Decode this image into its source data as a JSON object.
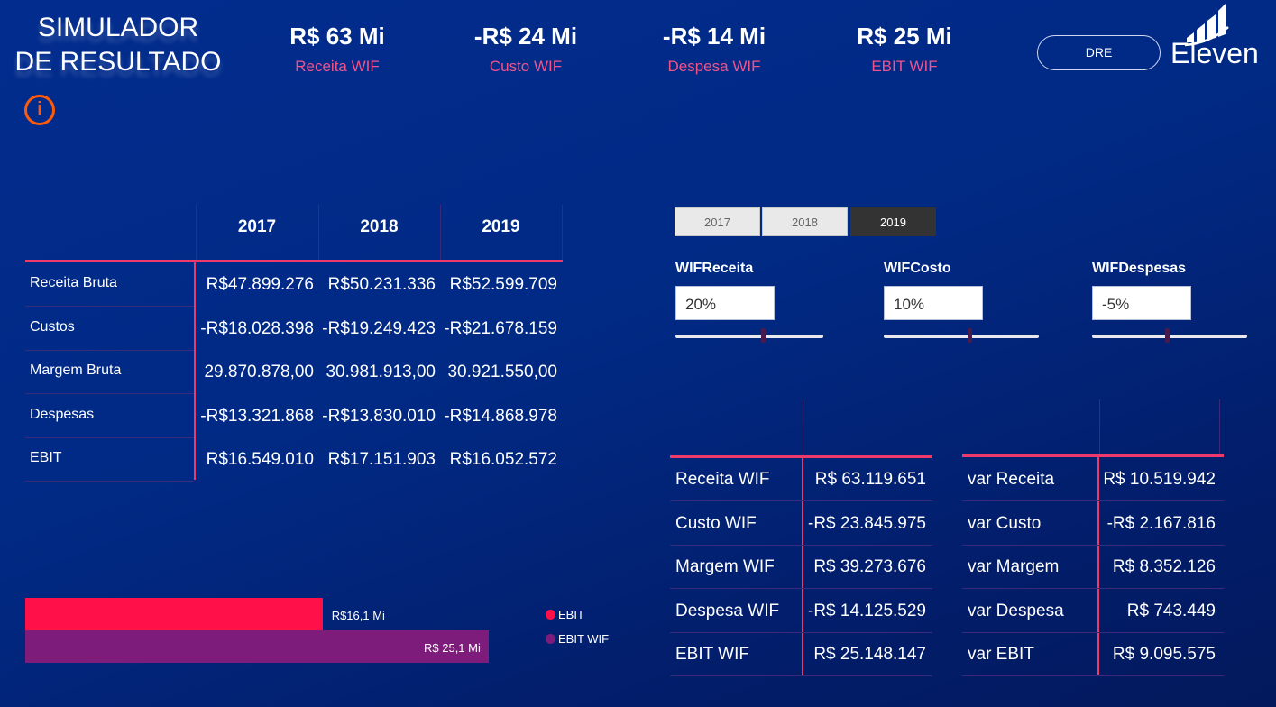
{
  "header": {
    "title_line1": "SIMULADOR",
    "title_line2": "DE RESULTADO",
    "info_icon": "i",
    "dre_button": "DRE",
    "logo_text": "Eleven"
  },
  "kpis": [
    {
      "value": "R$ 63 Mi",
      "label": "Receita WIF"
    },
    {
      "value": "-R$ 24 Mi",
      "label": "Custo WIF"
    },
    {
      "value": "-R$ 14 Mi",
      "label": "Despesa WIF"
    },
    {
      "value": "R$ 25 Mi",
      "label": "EBIT WIF"
    }
  ],
  "dre_table": {
    "columns": [
      "2017",
      "2018",
      "2019"
    ],
    "rows": [
      {
        "label": "Receita Bruta",
        "values": [
          "R$47.899.276",
          "R$50.231.336",
          "R$52.599.709"
        ]
      },
      {
        "label": "Custos",
        "values": [
          "-R$18.028.398",
          "-R$19.249.423",
          "-R$21.678.159"
        ]
      },
      {
        "label": "Margem Bruta",
        "values": [
          "29.870.878,00",
          "30.981.913,00",
          "30.921.550,00"
        ]
      },
      {
        "label": "Despesas",
        "values": [
          "-R$13.321.868",
          "-R$13.830.010",
          "-R$14.868.978"
        ]
      },
      {
        "label": "EBIT",
        "values": [
          "R$16.549.010",
          "R$17.151.903",
          "R$16.052.572"
        ]
      }
    ]
  },
  "year_slicer": {
    "options": [
      "2017",
      "2018",
      "2019"
    ],
    "selected": "2019"
  },
  "what_if": [
    {
      "label": "WIFReceita",
      "value": "20%",
      "slider_fraction": 0.59
    },
    {
      "label": "WIFCosto",
      "value": "10%",
      "slider_fraction": 0.55
    },
    {
      "label": "WIFDespesas",
      "value": "-5%",
      "slider_fraction": 0.48
    }
  ],
  "wif_table": [
    {
      "label": "Receita WIF",
      "value": "R$ 63.119.651"
    },
    {
      "label": "Custo WIF",
      "value": "-R$ 23.845.975"
    },
    {
      "label": "Margem WIF",
      "value": "R$ 39.273.676"
    },
    {
      "label": "Despesa WIF",
      "value": "-R$ 14.125.529"
    },
    {
      "label": "EBIT WIF",
      "value": "R$ 25.148.147"
    }
  ],
  "var_table": [
    {
      "label": "var Receita",
      "value": "R$ 10.519.942"
    },
    {
      "label": "var Custo",
      "value": "-R$ 2.167.816"
    },
    {
      "label": "var Margem",
      "value": "R$ 8.352.126"
    },
    {
      "label": "var Despesa",
      "value": "R$ 743.449"
    },
    {
      "label": "var EBIT",
      "value": "R$ 9.095.575"
    }
  ],
  "chart_data": {
    "type": "bar",
    "orientation": "horizontal",
    "series": [
      {
        "name": "EBIT",
        "value": 16.1,
        "label": "R$16,1 Mi",
        "color": "#ff1048"
      },
      {
        "name": "EBIT WIF",
        "value": 25.1,
        "label": "R$ 25,1 Mi",
        "color": "#7e1c7c"
      }
    ],
    "units": "R$ Mi",
    "legend_position": "right"
  }
}
